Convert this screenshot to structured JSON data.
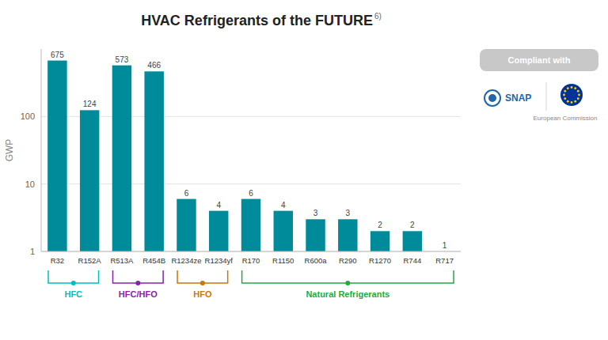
{
  "chart_data": {
    "type": "bar",
    "title": "HVAC Refrigerants of the FUTURE",
    "y_label": "GWP",
    "categories": [
      "R32",
      "R152A",
      "R513A",
      "R454B",
      "R1234ze",
      "R1234yf",
      "R170",
      "R1150",
      "R600a",
      "R290",
      "R1270",
      "R744",
      "R717"
    ],
    "values": [
      675,
      124,
      573,
      466,
      6,
      4,
      6,
      4,
      3,
      3,
      2,
      2,
      1
    ],
    "color": "#008B9A",
    "log": "y",
    "ylim": [
      1,
      1000
    ],
    "yticks": [
      1,
      10,
      100
    ],
    "grid": true,
    "data_labels": true,
    "groups": [
      {
        "label": "HFC",
        "color": "#00BEBE",
        "categories": [
          "R32",
          "R152A"
        ]
      },
      {
        "label": "HFC/HFO",
        "color": "#8822AA",
        "categories": [
          "R513A",
          "R454B"
        ]
      },
      {
        "label": "HFO",
        "color": "#CC7700",
        "categories": [
          "R1234ze",
          "R1234yf"
        ]
      },
      {
        "label": "Natural Refrigerants",
        "color": "#22AA44",
        "categories": [
          "R170",
          "R1150",
          "R600a",
          "R290",
          "R1270",
          "R744",
          "R717"
        ]
      }
    ],
    "annotations": [
      "6)",
      "Compliant with",
      "SNAP",
      "European Commission"
    ]
  }
}
